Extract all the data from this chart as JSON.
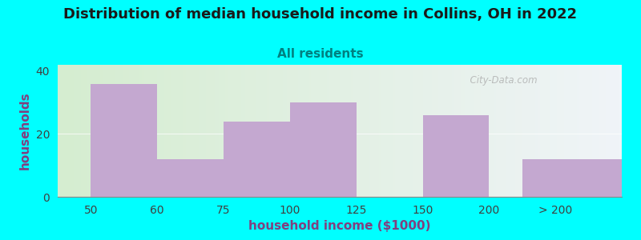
{
  "title": "Distribution of median household income in Collins, OH in 2022",
  "subtitle": "All residents",
  "xlabel": "household income ($1000)",
  "ylabel": "households",
  "bar_labels": [
    "50",
    "60",
    "75",
    "100",
    "125",
    "150",
    "200",
    "> 200"
  ],
  "bar_values": [
    36,
    12,
    24,
    30,
    0,
    26,
    0,
    12
  ],
  "bar_color": "#C4A8D0",
  "background_color": "#00FFFF",
  "plot_bg_gradient_left": "#D5EDD0",
  "plot_bg_gradient_right": "#F0F4F8",
  "title_fontsize": 13,
  "subtitle_fontsize": 11,
  "subtitle_color": "#008080",
  "axis_label_fontsize": 11,
  "tick_fontsize": 10,
  "yticks": [
    0,
    20,
    40
  ],
  "ylim": [
    0,
    42
  ],
  "watermark": "  City-Data.com"
}
